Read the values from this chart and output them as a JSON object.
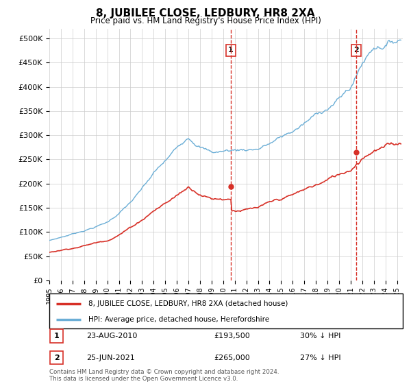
{
  "title": "8, JUBILEE CLOSE, LEDBURY, HR8 2XA",
  "subtitle": "Price paid vs. HM Land Registry's House Price Index (HPI)",
  "legend_line1": "8, JUBILEE CLOSE, LEDBURY, HR8 2XA (detached house)",
  "legend_line2": "HPI: Average price, detached house, Herefordshire",
  "note": "Contains HM Land Registry data © Crown copyright and database right 2024.\nThis data is licensed under the Open Government Licence v3.0.",
  "table": [
    {
      "num": "1",
      "date": "23-AUG-2010",
      "price": "£193,500",
      "pct": "30% ↓ HPI"
    },
    {
      "num": "2",
      "date": "25-JUN-2021",
      "price": "£265,000",
      "pct": "27% ↓ HPI"
    }
  ],
  "marker1_x": 2010.65,
  "marker1_y": 193500,
  "marker2_x": 2021.48,
  "marker2_y": 265000,
  "vline1_x": 2010.65,
  "vline2_x": 2021.48,
  "hpi_color": "#6baed6",
  "price_color": "#d73027",
  "vline_color": "#d73027",
  "ylim": [
    0,
    520000
  ],
  "xlim_start": 1995.0,
  "xlim_end": 2025.5,
  "yticks": [
    0,
    50000,
    100000,
    150000,
    200000,
    250000,
    300000,
    350000,
    400000,
    450000,
    500000
  ],
  "xticks": [
    1995,
    1996,
    1997,
    1998,
    1999,
    2000,
    2001,
    2002,
    2003,
    2004,
    2005,
    2006,
    2007,
    2008,
    2009,
    2010,
    2011,
    2012,
    2013,
    2014,
    2015,
    2016,
    2017,
    2018,
    2019,
    2020,
    2021,
    2022,
    2023,
    2024,
    2025
  ]
}
